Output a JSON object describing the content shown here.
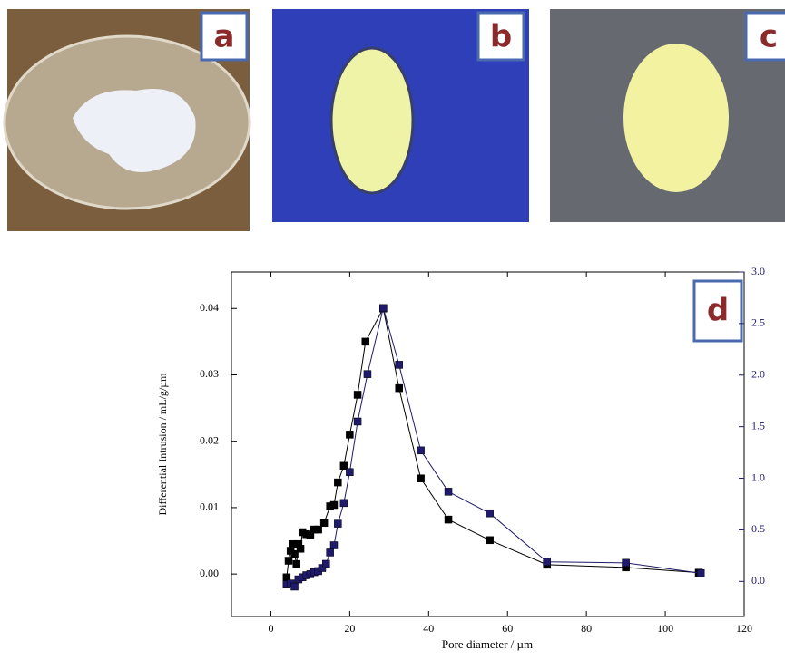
{
  "panels": {
    "a": "a",
    "b": "b",
    "c": "c"
  },
  "chart_data": {
    "type": "scatter-line",
    "label": "d",
    "x_label": "Pore diameter / µm",
    "y_label": "Differential Intrusion / mL/g/µm",
    "xlim": [
      -10,
      120
    ],
    "xticks": [
      0,
      20,
      40,
      60,
      80,
      100,
      120
    ],
    "ylim": [
      -0.0064,
      0.0455
    ],
    "yticks": [
      {
        "value": 0,
        "label": "0.00"
      },
      {
        "value": 0.01,
        "label": "0.01"
      },
      {
        "value": 0.02,
        "label": "0.02"
      },
      {
        "value": 0.03,
        "label": "0.03"
      },
      {
        "value": 0.04,
        "label": "0.04"
      }
    ],
    "y2lim": [
      -0.34,
      3.0
    ],
    "y2ticks": [
      {
        "value": 0,
        "label": "0.0"
      },
      0.5,
      {
        "value": 1,
        "label": "1.0"
      },
      1.5,
      {
        "value": 2,
        "label": "2.0"
      },
      2.5,
      {
        "value": 3,
        "label": "3.0"
      }
    ],
    "series": [
      {
        "color": "#000000",
        "x": [
          4,
          4.5,
          5,
          5.5,
          6,
          6.5,
          7,
          7.5,
          8,
          9,
          10,
          11,
          12,
          13.5,
          15,
          16,
          17,
          18.5,
          20,
          22,
          24,
          28.5,
          32.5,
          38,
          45,
          55.5,
          70,
          90,
          108.5
        ],
        "values": [
          -0.0005,
          0.002,
          0.0035,
          0.0045,
          0.003,
          0.0015,
          0.0045,
          0.0038,
          0.0063,
          0.006,
          0.0058,
          0.0067,
          0.0067,
          0.0077,
          0.0102,
          0.0104,
          0.0138,
          0.0163,
          0.021,
          0.027,
          0.035,
          0.04,
          0.028,
          0.0144,
          0.0082,
          0.0051,
          0.0014,
          0.001,
          0.0002
        ]
      },
      {
        "color": "#1f1a6b",
        "axis": "y2",
        "x": [
          4,
          5,
          6,
          7,
          8,
          9,
          10,
          11,
          12,
          13,
          14,
          15,
          16,
          17,
          18.5,
          20,
          22,
          24.5,
          28.5,
          32.5,
          38,
          45,
          55.5,
          70,
          90,
          109
        ],
        "values": [
          -0.03,
          -0.02,
          -0.05,
          0.02,
          0.04,
          0.06,
          0.07,
          0.09,
          0.1,
          0.13,
          0.17,
          0.28,
          0.35,
          0.56,
          0.76,
          1.06,
          1.55,
          2.01,
          2.65,
          2.1,
          1.27,
          0.87,
          0.66,
          0.19,
          0.18,
          0.08
        ]
      }
    ]
  }
}
